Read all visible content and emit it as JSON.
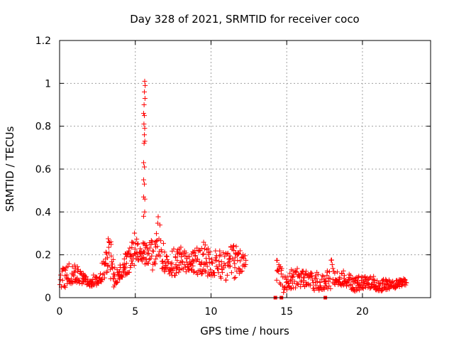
{
  "chart_data": {
    "type": "scatter",
    "title": "Day 328 of 2021, SRMTID for receiver coco",
    "xlabel": "GPS time / hours",
    "ylabel": "SRMTID / TECUs",
    "xlim": [
      0,
      24.5
    ],
    "ylim": [
      0,
      1.2
    ],
    "xticks": [
      0,
      5,
      10,
      15,
      20
    ],
    "xtick_labels": [
      "0",
      "5",
      "10",
      "15",
      "20"
    ],
    "yticks": [
      0,
      0.2,
      0.4,
      0.6,
      0.8,
      1.0,
      1.2
    ],
    "ytick_labels": [
      "0",
      "0.2",
      "0.4",
      "0.6",
      "0.8",
      "1",
      "1.2"
    ],
    "grid": true,
    "marker": "+",
    "color": "#ff0000",
    "data_gap_hours": [
      12.3,
      14.3
    ],
    "zero_points_x": [
      14.25,
      14.65,
      17.55
    ],
    "spike_points": [
      {
        "x": 5.62,
        "y": 1.01
      },
      {
        "x": 5.65,
        "y": 0.99
      },
      {
        "x": 5.6,
        "y": 0.96
      },
      {
        "x": 5.64,
        "y": 0.93
      },
      {
        "x": 5.58,
        "y": 0.9
      },
      {
        "x": 5.55,
        "y": 0.86
      },
      {
        "x": 5.6,
        "y": 0.85
      },
      {
        "x": 5.57,
        "y": 0.81
      },
      {
        "x": 5.62,
        "y": 0.79
      },
      {
        "x": 5.6,
        "y": 0.76
      },
      {
        "x": 5.63,
        "y": 0.73
      },
      {
        "x": 5.58,
        "y": 0.72
      },
      {
        "x": 5.55,
        "y": 0.63
      },
      {
        "x": 5.6,
        "y": 0.61
      },
      {
        "x": 5.55,
        "y": 0.55
      },
      {
        "x": 5.6,
        "y": 0.53
      },
      {
        "x": 5.55,
        "y": 0.47
      },
      {
        "x": 5.63,
        "y": 0.46
      },
      {
        "x": 5.62,
        "y": 0.4
      },
      {
        "x": 5.55,
        "y": 0.38
      }
    ],
    "envelope": {
      "x": [
        0,
        0.5,
        1,
        1.5,
        2,
        2.5,
        3,
        3.3,
        3.6,
        4,
        4.5,
        5,
        5.3,
        5.8,
        6.2,
        6.5,
        6.8,
        7,
        7.5,
        8,
        8.5,
        9,
        9.5,
        10,
        10.5,
        11,
        11.5,
        12.2,
        14.4,
        14.8,
        15.5,
        16,
        16.5,
        17,
        17.5,
        17.9,
        18.3,
        19,
        19.5,
        20,
        20.5,
        21,
        21.5,
        22,
        22.5,
        22.9
      ],
      "low": [
        0.04,
        0.05,
        0.07,
        0.06,
        0.05,
        0.06,
        0.09,
        0.1,
        0.04,
        0.09,
        0.11,
        0.16,
        0.18,
        0.14,
        0.12,
        0.2,
        0.12,
        0.12,
        0.1,
        0.11,
        0.12,
        0.11,
        0.1,
        0.1,
        0.09,
        0.08,
        0.09,
        0.12,
        0.08,
        0.02,
        0.04,
        0.05,
        0.04,
        0.03,
        0.04,
        0.04,
        0.06,
        0.04,
        0.03,
        0.04,
        0.04,
        0.03,
        0.03,
        0.04,
        0.05,
        0.06
      ],
      "high": [
        0.13,
        0.16,
        0.16,
        0.12,
        0.1,
        0.13,
        0.19,
        0.34,
        0.14,
        0.16,
        0.24,
        0.32,
        0.28,
        0.25,
        0.3,
        0.43,
        0.3,
        0.2,
        0.23,
        0.24,
        0.2,
        0.23,
        0.26,
        0.22,
        0.23,
        0.21,
        0.26,
        0.2,
        0.18,
        0.12,
        0.14,
        0.13,
        0.12,
        0.12,
        0.1,
        0.2,
        0.14,
        0.12,
        0.1,
        0.1,
        0.1,
        0.1,
        0.09,
        0.08,
        0.09,
        0.09
      ]
    }
  }
}
